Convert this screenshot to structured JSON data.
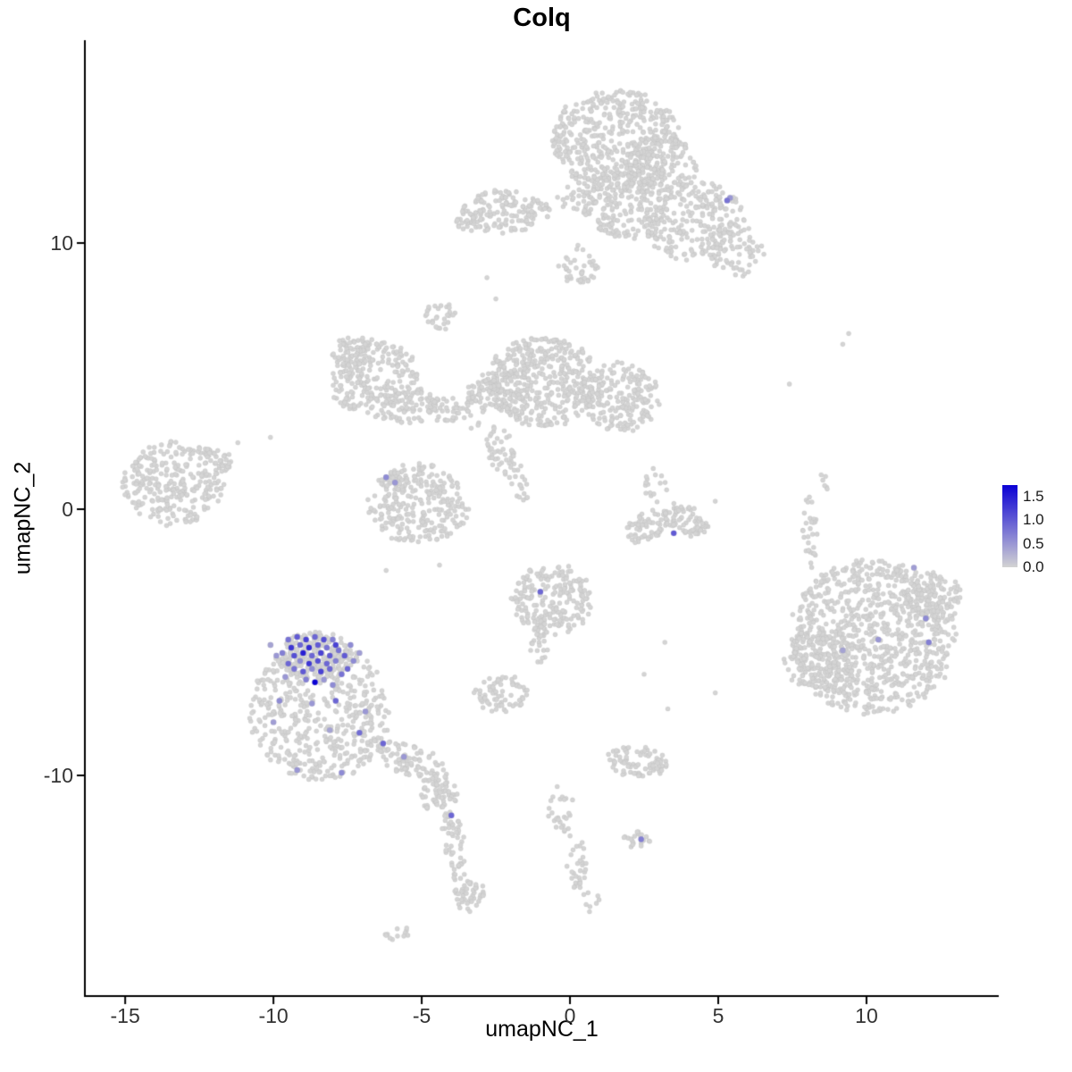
{
  "style": {
    "background_color": "#ffffff",
    "point_color": "#d4d4d4",
    "point_edge_color": "rgba(160,160,160,0.25)",
    "axis_color": "#000000",
    "tick_text_color": "#333333",
    "point_radius": 2.6,
    "expressing_point_radius": 3.2
  },
  "chart_data": {
    "type": "scatter",
    "title": "Colq",
    "xlabel": "umapNC_1",
    "ylabel": "umapNC_2",
    "xlim": [
      -16.36,
      14.46
    ],
    "ylim": [
      -18.29,
      17.62
    ],
    "x_ticks": [
      "-15",
      "-10",
      "-5",
      "0",
      "5",
      "10"
    ],
    "y_ticks": [
      "10",
      "0",
      "-10"
    ],
    "grid": false,
    "legend_position": "right",
    "color_scale": {
      "low": "#d3d3d3",
      "high": "#0b00d5",
      "min": 0,
      "max": 1.75,
      "legend_labels": [
        "1.5",
        "1.0",
        "0.5",
        "0.0"
      ]
    },
    "background_clusters": [
      {
        "cx": 1.6,
        "cy": 13.9,
        "rx": 2.2,
        "ry": 1.9,
        "n": 480
      },
      {
        "cx": 3.1,
        "cy": 12.9,
        "rx": 1.2,
        "ry": 1.2,
        "n": 150
      },
      {
        "cx": 1.9,
        "cy": 11.5,
        "rx": 1.3,
        "ry": 1.4,
        "n": 180
      },
      {
        "cx": 4.2,
        "cy": 10.8,
        "rx": 1.7,
        "ry": 1.5,
        "n": 230
      },
      {
        "cx": 5.6,
        "cy": 9.8,
        "rx": 0.9,
        "ry": 1.1,
        "n": 70
      },
      {
        "cx": 0.3,
        "cy": 9.2,
        "rx": 0.7,
        "ry": 0.7,
        "n": 40
      },
      {
        "cx": 0.3,
        "cy": 11.7,
        "rx": 0.7,
        "ry": 0.6,
        "n": 35
      },
      {
        "cx": -2.2,
        "cy": 11.2,
        "rx": 1.5,
        "ry": 0.8,
        "n": 140
      },
      {
        "cx": -3.4,
        "cy": 10.9,
        "rx": 0.5,
        "ry": 0.5,
        "n": 30
      },
      {
        "cx": -4.4,
        "cy": 7.3,
        "rx": 0.5,
        "ry": 0.6,
        "n": 28
      },
      {
        "cx": -0.9,
        "cy": 4.8,
        "rx": 1.9,
        "ry": 1.7,
        "n": 420
      },
      {
        "cx": 1.7,
        "cy": 4.2,
        "rx": 1.3,
        "ry": 1.3,
        "n": 200
      },
      {
        "cx": -2.6,
        "cy": 4.4,
        "rx": 0.9,
        "ry": 0.8,
        "n": 90
      },
      {
        "cx": -3.9,
        "cy": 3.6,
        "rx": 1.0,
        "ry": 0.5,
        "n": 50,
        "rot": -25
      },
      {
        "cx": -2.3,
        "cy": 2.2,
        "rx": 0.5,
        "ry": 1.0,
        "n": 45,
        "rot": 15
      },
      {
        "cx": -1.7,
        "cy": 0.9,
        "rx": 0.4,
        "ry": 0.7,
        "n": 18
      },
      {
        "cx": -6.6,
        "cy": 4.9,
        "rx": 1.5,
        "ry": 1.5,
        "n": 230
      },
      {
        "cx": -5.4,
        "cy": 3.9,
        "rx": 0.9,
        "ry": 0.7,
        "n": 70
      },
      {
        "cx": -7.3,
        "cy": 5.9,
        "rx": 0.7,
        "ry": 0.6,
        "n": 50
      },
      {
        "cx": -13.3,
        "cy": 1.0,
        "rx": 1.8,
        "ry": 1.6,
        "n": 280
      },
      {
        "cx": -12.0,
        "cy": 1.8,
        "rx": 0.6,
        "ry": 0.5,
        "n": 30
      },
      {
        "cx": -5.1,
        "cy": 0.2,
        "rx": 1.7,
        "ry": 1.5,
        "n": 260
      },
      {
        "cx": -6.0,
        "cy": 1.1,
        "rx": 0.5,
        "ry": 0.4,
        "n": 25
      },
      {
        "cx": 2.7,
        "cy": -0.6,
        "rx": 0.9,
        "ry": 0.5,
        "n": 70,
        "rot": 30
      },
      {
        "cx": 3.9,
        "cy": -0.4,
        "rx": 0.8,
        "ry": 0.5,
        "n": 70,
        "rot": -30
      },
      {
        "cx": 2.9,
        "cy": 1.0,
        "rx": 0.4,
        "ry": 0.8,
        "n": 16
      },
      {
        "cx": -0.6,
        "cy": -3.4,
        "rx": 1.4,
        "ry": 1.3,
        "n": 210
      },
      {
        "cx": -1.0,
        "cy": -5.0,
        "rx": 0.3,
        "ry": 0.8,
        "n": 25
      },
      {
        "cx": -2.3,
        "cy": -6.9,
        "rx": 0.9,
        "ry": 0.7,
        "n": 70
      },
      {
        "cx": -8.4,
        "cy": -7.6,
        "rx": 2.4,
        "ry": 2.6,
        "n": 520
      },
      {
        "cx": -8.6,
        "cy": -5.5,
        "rx": 1.3,
        "ry": 0.9,
        "n": 140
      },
      {
        "cx": -5.3,
        "cy": -9.5,
        "rx": 1.3,
        "ry": 0.6,
        "n": 90,
        "rot": -25
      },
      {
        "cx": -4.4,
        "cy": -10.8,
        "rx": 0.6,
        "ry": 0.8,
        "n": 60
      },
      {
        "cx": -4.0,
        "cy": -12.2,
        "rx": 0.4,
        "ry": 0.8,
        "n": 35
      },
      {
        "cx": -3.8,
        "cy": -13.4,
        "rx": 0.3,
        "ry": 0.6,
        "n": 18
      },
      {
        "cx": -3.4,
        "cy": -14.5,
        "rx": 0.55,
        "ry": 0.6,
        "n": 45
      },
      {
        "cx": -5.9,
        "cy": -15.9,
        "rx": 0.5,
        "ry": 0.3,
        "n": 12
      },
      {
        "cx": 10.2,
        "cy": -4.8,
        "rx": 2.8,
        "ry": 2.9,
        "n": 850
      },
      {
        "cx": 8.4,
        "cy": -5.6,
        "rx": 1.2,
        "ry": 1.2,
        "n": 160
      },
      {
        "cx": 12.2,
        "cy": -3.4,
        "rx": 1.0,
        "ry": 1.0,
        "n": 110
      },
      {
        "cx": 8.1,
        "cy": -0.8,
        "rx": 0.25,
        "ry": 1.4,
        "n": 30
      },
      {
        "cx": 8.6,
        "cy": 1.2,
        "rx": 0.2,
        "ry": 0.5,
        "n": 6
      },
      {
        "cx": 2.2,
        "cy": -9.5,
        "rx": 1.1,
        "ry": 0.55,
        "n": 85
      },
      {
        "cx": -0.3,
        "cy": -11.3,
        "rx": 0.4,
        "ry": 0.9,
        "n": 26
      },
      {
        "cx": 0.2,
        "cy": -13.2,
        "rx": 0.4,
        "ry": 1.1,
        "n": 30
      },
      {
        "cx": 0.7,
        "cy": -14.7,
        "rx": 0.3,
        "ry": 0.4,
        "n": 8
      },
      {
        "cx": 2.3,
        "cy": -12.4,
        "rx": 0.55,
        "ry": 0.3,
        "n": 20
      }
    ],
    "sparse_points": [
      [
        -2.8,
        8.7
      ],
      [
        -2.5,
        7.9
      ],
      [
        9.4,
        6.6
      ],
      [
        9.2,
        6.2
      ],
      [
        7.4,
        4.7
      ],
      [
        -11.2,
        2.5
      ],
      [
        -10.1,
        2.7
      ],
      [
        4.9,
        0.3
      ],
      [
        3.2,
        -5.0
      ],
      [
        4.9,
        -6.9
      ],
      [
        3.3,
        -7.5
      ],
      [
        2.5,
        -6.2
      ],
      [
        -6.2,
        -2.3
      ],
      [
        -4.4,
        -2.1
      ]
    ],
    "expressing_points": [
      [
        -9.5,
        -4.9,
        0.8
      ],
      [
        -9.2,
        -4.8,
        1.0
      ],
      [
        -8.9,
        -4.9,
        1.2
      ],
      [
        -8.6,
        -4.8,
        0.9
      ],
      [
        -8.3,
        -4.9,
        1.1
      ],
      [
        -8.0,
        -4.9,
        0.7
      ],
      [
        -9.4,
        -5.2,
        1.3
      ],
      [
        -9.1,
        -5.1,
        0.9
      ],
      [
        -8.8,
        -5.2,
        1.4
      ],
      [
        -8.5,
        -5.1,
        1.0
      ],
      [
        -8.2,
        -5.2,
        0.8
      ],
      [
        -7.9,
        -5.1,
        1.2
      ],
      [
        -9.7,
        -5.4,
        0.7
      ],
      [
        -9.3,
        -5.5,
        1.1
      ],
      [
        -9.0,
        -5.4,
        1.5
      ],
      [
        -8.7,
        -5.5,
        0.9
      ],
      [
        -8.4,
        -5.4,
        1.2
      ],
      [
        -8.1,
        -5.5,
        1.0
      ],
      [
        -7.8,
        -5.3,
        0.8
      ],
      [
        -9.5,
        -5.8,
        0.9
      ],
      [
        -9.1,
        -5.7,
        0.6
      ],
      [
        -8.8,
        -5.8,
        1.3
      ],
      [
        -8.5,
        -5.7,
        1.1
      ],
      [
        -8.2,
        -5.8,
        0.9
      ],
      [
        -7.9,
        -5.7,
        0.7
      ],
      [
        -7.6,
        -5.5,
        1.0
      ],
      [
        -9.3,
        -6.0,
        0.8
      ],
      [
        -9.0,
        -6.1,
        1.0
      ],
      [
        -8.7,
        -6.0,
        0.6
      ],
      [
        -8.4,
        -6.1,
        1.2
      ],
      [
        -8.1,
        -6.0,
        0.9
      ],
      [
        -8.6,
        -6.5,
        1.75
      ],
      [
        -8.9,
        -6.4,
        0.7
      ],
      [
        -8.3,
        -6.4,
        0.5
      ],
      [
        -7.7,
        -6.2,
        0.8
      ],
      [
        -9.6,
        -6.3,
        0.5
      ],
      [
        -8.0,
        -6.6,
        0.6
      ],
      [
        -7.5,
        -6.0,
        0.9
      ],
      [
        -7.3,
        -5.7,
        0.6
      ],
      [
        -9.9,
        -5.5,
        0.5
      ],
      [
        -10.1,
        -5.1,
        0.4
      ],
      [
        -7.4,
        -5.1,
        0.6
      ],
      [
        -7.1,
        -5.4,
        0.45
      ],
      [
        -7.9,
        -7.2,
        0.9
      ],
      [
        -8.7,
        -7.3,
        0.5
      ],
      [
        -9.8,
        -7.2,
        0.6
      ],
      [
        -7.1,
        -8.4,
        0.85
      ],
      [
        -6.3,
        -8.8,
        0.9
      ],
      [
        -7.7,
        -9.9,
        0.6
      ],
      [
        -9.2,
        -9.8,
        0.5
      ],
      [
        -8.1,
        -8.3,
        0.4
      ],
      [
        -6.9,
        -7.6,
        0.5
      ],
      [
        -10.0,
        -8.0,
        0.45
      ],
      [
        -5.6,
        -9.3,
        0.5
      ],
      [
        -6.2,
        1.2,
        0.6
      ],
      [
        -5.9,
        1.0,
        0.5
      ],
      [
        3.5,
        -0.9,
        1.0
      ],
      [
        -1.0,
        -3.1,
        0.9
      ],
      [
        5.3,
        11.6,
        0.8
      ],
      [
        5.4,
        11.7,
        0.5
      ],
      [
        -4.0,
        -11.5,
        0.9
      ],
      [
        2.4,
        -12.4,
        0.7
      ],
      [
        10.4,
        -4.9,
        0.5
      ],
      [
        12.0,
        -4.1,
        0.6
      ],
      [
        12.1,
        -5.0,
        0.7
      ],
      [
        9.2,
        -5.3,
        0.4
      ],
      [
        11.6,
        -2.2,
        0.45
      ]
    ]
  }
}
